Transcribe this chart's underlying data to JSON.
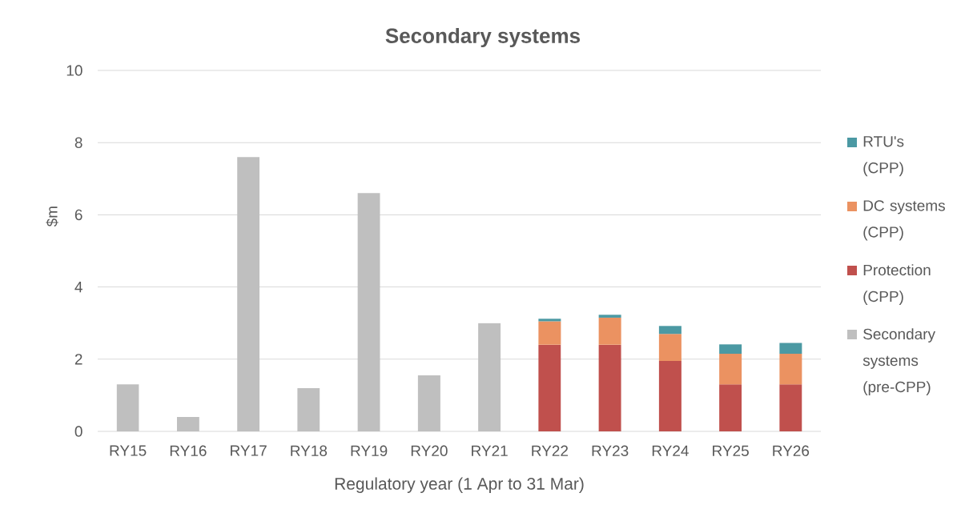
{
  "chart_data": {
    "type": "bar",
    "title": "Secondary systems",
    "xlabel": "Regulatory year (1 Apr to 31 Mar)",
    "ylabel": "$m",
    "categories": [
      "RY15",
      "RY16",
      "RY17",
      "RY18",
      "RY19",
      "RY20",
      "RY21",
      "RY22",
      "RY23",
      "RY24",
      "RY25",
      "RY26"
    ],
    "stacked": true,
    "series": [
      {
        "name": "Secondary systems (pre-CPP)",
        "color": "#bfbfbf",
        "values": [
          1.3,
          0.4,
          7.6,
          1.2,
          6.6,
          1.55,
          3.0,
          null,
          null,
          null,
          null,
          null
        ]
      },
      {
        "name": "Protection (CPP)",
        "color": "#c0504d",
        "values": [
          null,
          null,
          null,
          null,
          null,
          null,
          null,
          2.4,
          2.4,
          1.95,
          1.3,
          1.3
        ]
      },
      {
        "name": "DC systems (CPP)",
        "color": "#eb9261",
        "values": [
          null,
          null,
          null,
          null,
          null,
          null,
          null,
          0.65,
          0.75,
          0.75,
          0.85,
          0.85
        ]
      },
      {
        "name": "RTU's (CPP)",
        "color": "#4b99a3",
        "values": [
          null,
          null,
          null,
          null,
          null,
          null,
          null,
          0.07,
          0.08,
          0.22,
          0.26,
          0.3
        ]
      }
    ],
    "ylim": [
      0,
      10
    ],
    "yticks": [
      0,
      2,
      4,
      6,
      8,
      10
    ],
    "grid": "y",
    "legend": "right"
  }
}
